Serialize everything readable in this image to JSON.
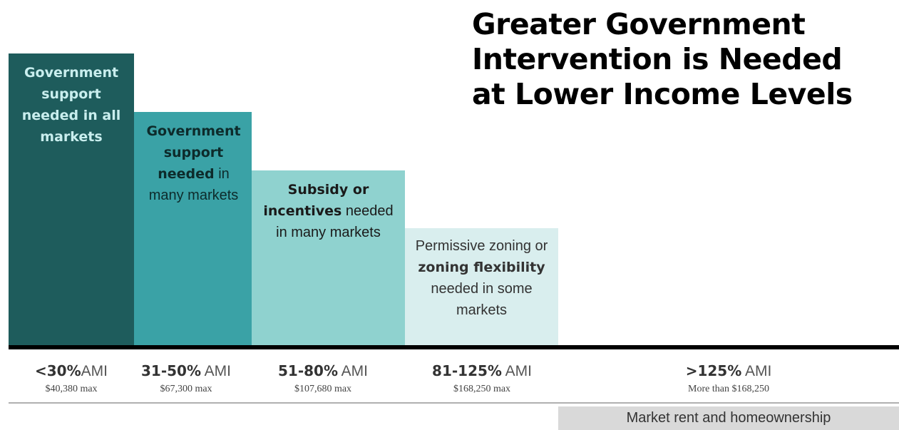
{
  "title": {
    "line1": "Greater Government",
    "line2": "Intervention is Needed",
    "line3": "at Lower Income Levels"
  },
  "chart_data": {
    "type": "bar",
    "title": "Greater Government Intervention is Needed at Lower Income Levels",
    "categories": [
      "<30%AMI",
      "31-50% AMI",
      "51-80% AMI",
      "81-125% AMI",
      ">125% AMI"
    ],
    "values": [
      5,
      4,
      3,
      2,
      0
    ],
    "colors": [
      "#1e5c5c",
      "#3aa2a6",
      "#8fd2cf",
      "#d9eeee",
      "#ffffff"
    ],
    "grid": false
  },
  "bars": [
    {
      "bold": "Government support needed in all markets",
      "normal": "",
      "color": "#1e5c5c",
      "text_color": "#c9eeee"
    },
    {
      "bold": "Government support needed",
      "normal": "in many markets",
      "color": "#3aa2a6",
      "text_color": "#0d2b2b"
    },
    {
      "bold": "Subsidy or incentives",
      "normal": "needed in many markets",
      "color": "#8fd2cf",
      "text_color": "#1a1a1a"
    },
    {
      "pre": "Permissive zoning or",
      "bold": "zoning flexibility",
      "normal": "needed in some markets",
      "color": "#d9eeee",
      "text_color": "#333333"
    }
  ],
  "categories": [
    {
      "bold": "<30%",
      "rest": "AMI",
      "max": "$40,380 max"
    },
    {
      "bold": "31-50%",
      "rest": " AMI",
      "max": "$67,300 max"
    },
    {
      "bold": "51-80%",
      "rest": " AMI",
      "max": "$107,680 max"
    },
    {
      "bold": "81-125%",
      "rest": " AMI",
      "max": "$168,250 max"
    },
    {
      "bold": ">125%",
      "rest": " AMI",
      "max": "More than $168,250"
    }
  ],
  "footer": {
    "market_label": "Market rent and homeownership"
  }
}
